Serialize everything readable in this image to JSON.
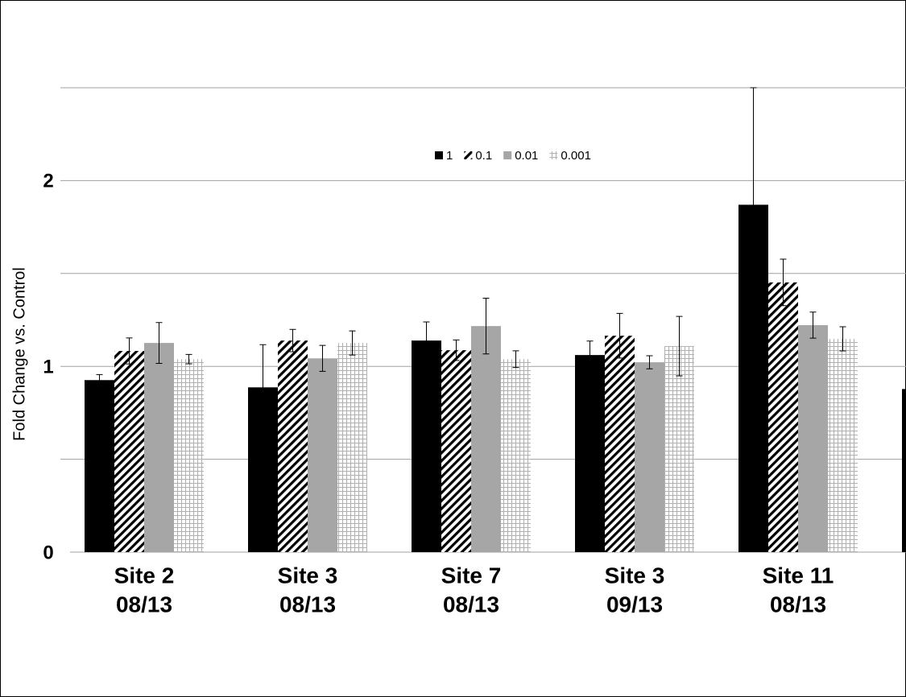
{
  "chart_data": {
    "type": "bar",
    "y_label": "Fold Change vs. Control",
    "categories": [
      [
        "Site 2",
        "08/13"
      ],
      [
        "Site 3",
        "08/13"
      ],
      [
        "Site 7",
        "08/13"
      ],
      [
        "Site 3",
        "09/13"
      ],
      [
        "Site 11",
        "08/13"
      ],
      null
    ],
    "series": [
      {
        "name": "1",
        "color": "#000000",
        "pattern": "solid",
        "values": [
          0.926,
          0.887,
          1.139,
          1.061,
          1.87,
          0.878
        ],
        "errors": [
          0.03,
          0.23,
          0.1,
          0.075,
          0.63,
          null
        ]
      },
      {
        "name": "0.1",
        "color": "#000000",
        "pattern": "diagonal",
        "values": [
          1.083,
          1.139,
          1.087,
          1.165,
          1.452,
          null
        ],
        "errors": [
          0.07,
          0.06,
          0.055,
          0.12,
          0.125,
          null
        ]
      },
      {
        "name": "0.01",
        "color": "#a6a6a6",
        "pattern": "solid",
        "values": [
          1.126,
          1.043,
          1.217,
          1.022,
          1.222,
          null
        ],
        "errors": [
          0.11,
          0.07,
          0.15,
          0.035,
          0.07,
          null
        ]
      },
      {
        "name": "0.001",
        "color": "#b0b0b0",
        "pattern": "grid",
        "values": [
          1.039,
          1.126,
          1.039,
          1.109,
          1.148,
          null
        ],
        "errors": [
          0.025,
          0.065,
          0.045,
          0.16,
          0.065,
          null
        ]
      }
    ],
    "ylim": [
      0,
      2.5
    ],
    "yticks": [
      0,
      1,
      2
    ],
    "ygrid": [
      0.5,
      1,
      1.5,
      2,
      2.5
    ],
    "grid": true
  }
}
